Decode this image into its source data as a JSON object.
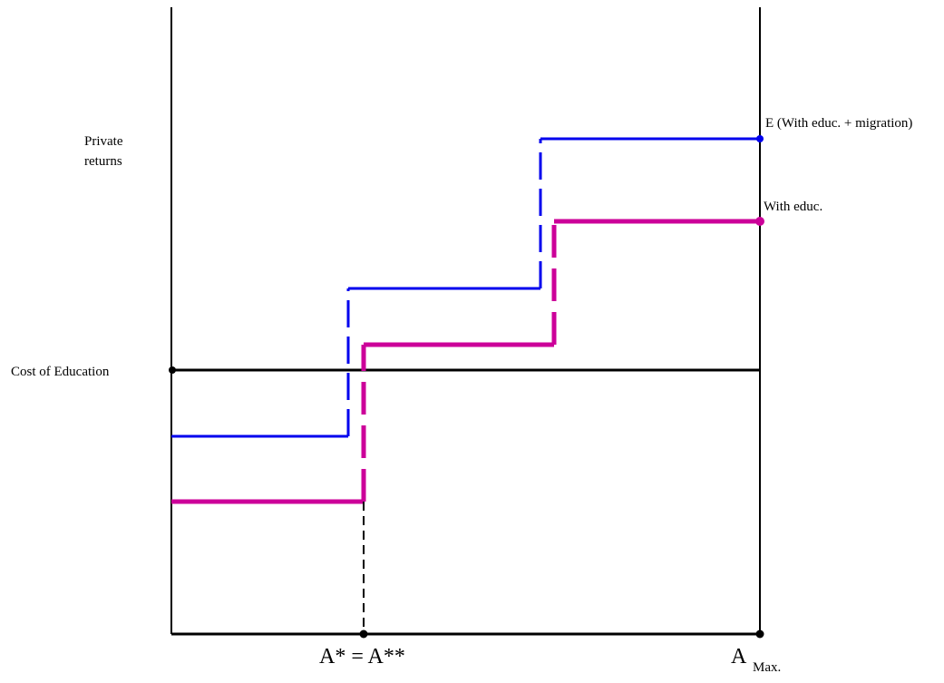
{
  "labels": {
    "y_label_line1": "Private",
    "y_label_line2": "returns",
    "cost_label": "Cost of Education",
    "blue_label": "E (With educ. + migration)",
    "magenta_label": "With educ.",
    "x_label_astar": "A* = A**",
    "x_label_amax_main": "A",
    "x_label_amax_sub": "Max."
  },
  "colors": {
    "blue": "#0000ee",
    "magenta": "#cc0099",
    "black": "#000000"
  }
}
